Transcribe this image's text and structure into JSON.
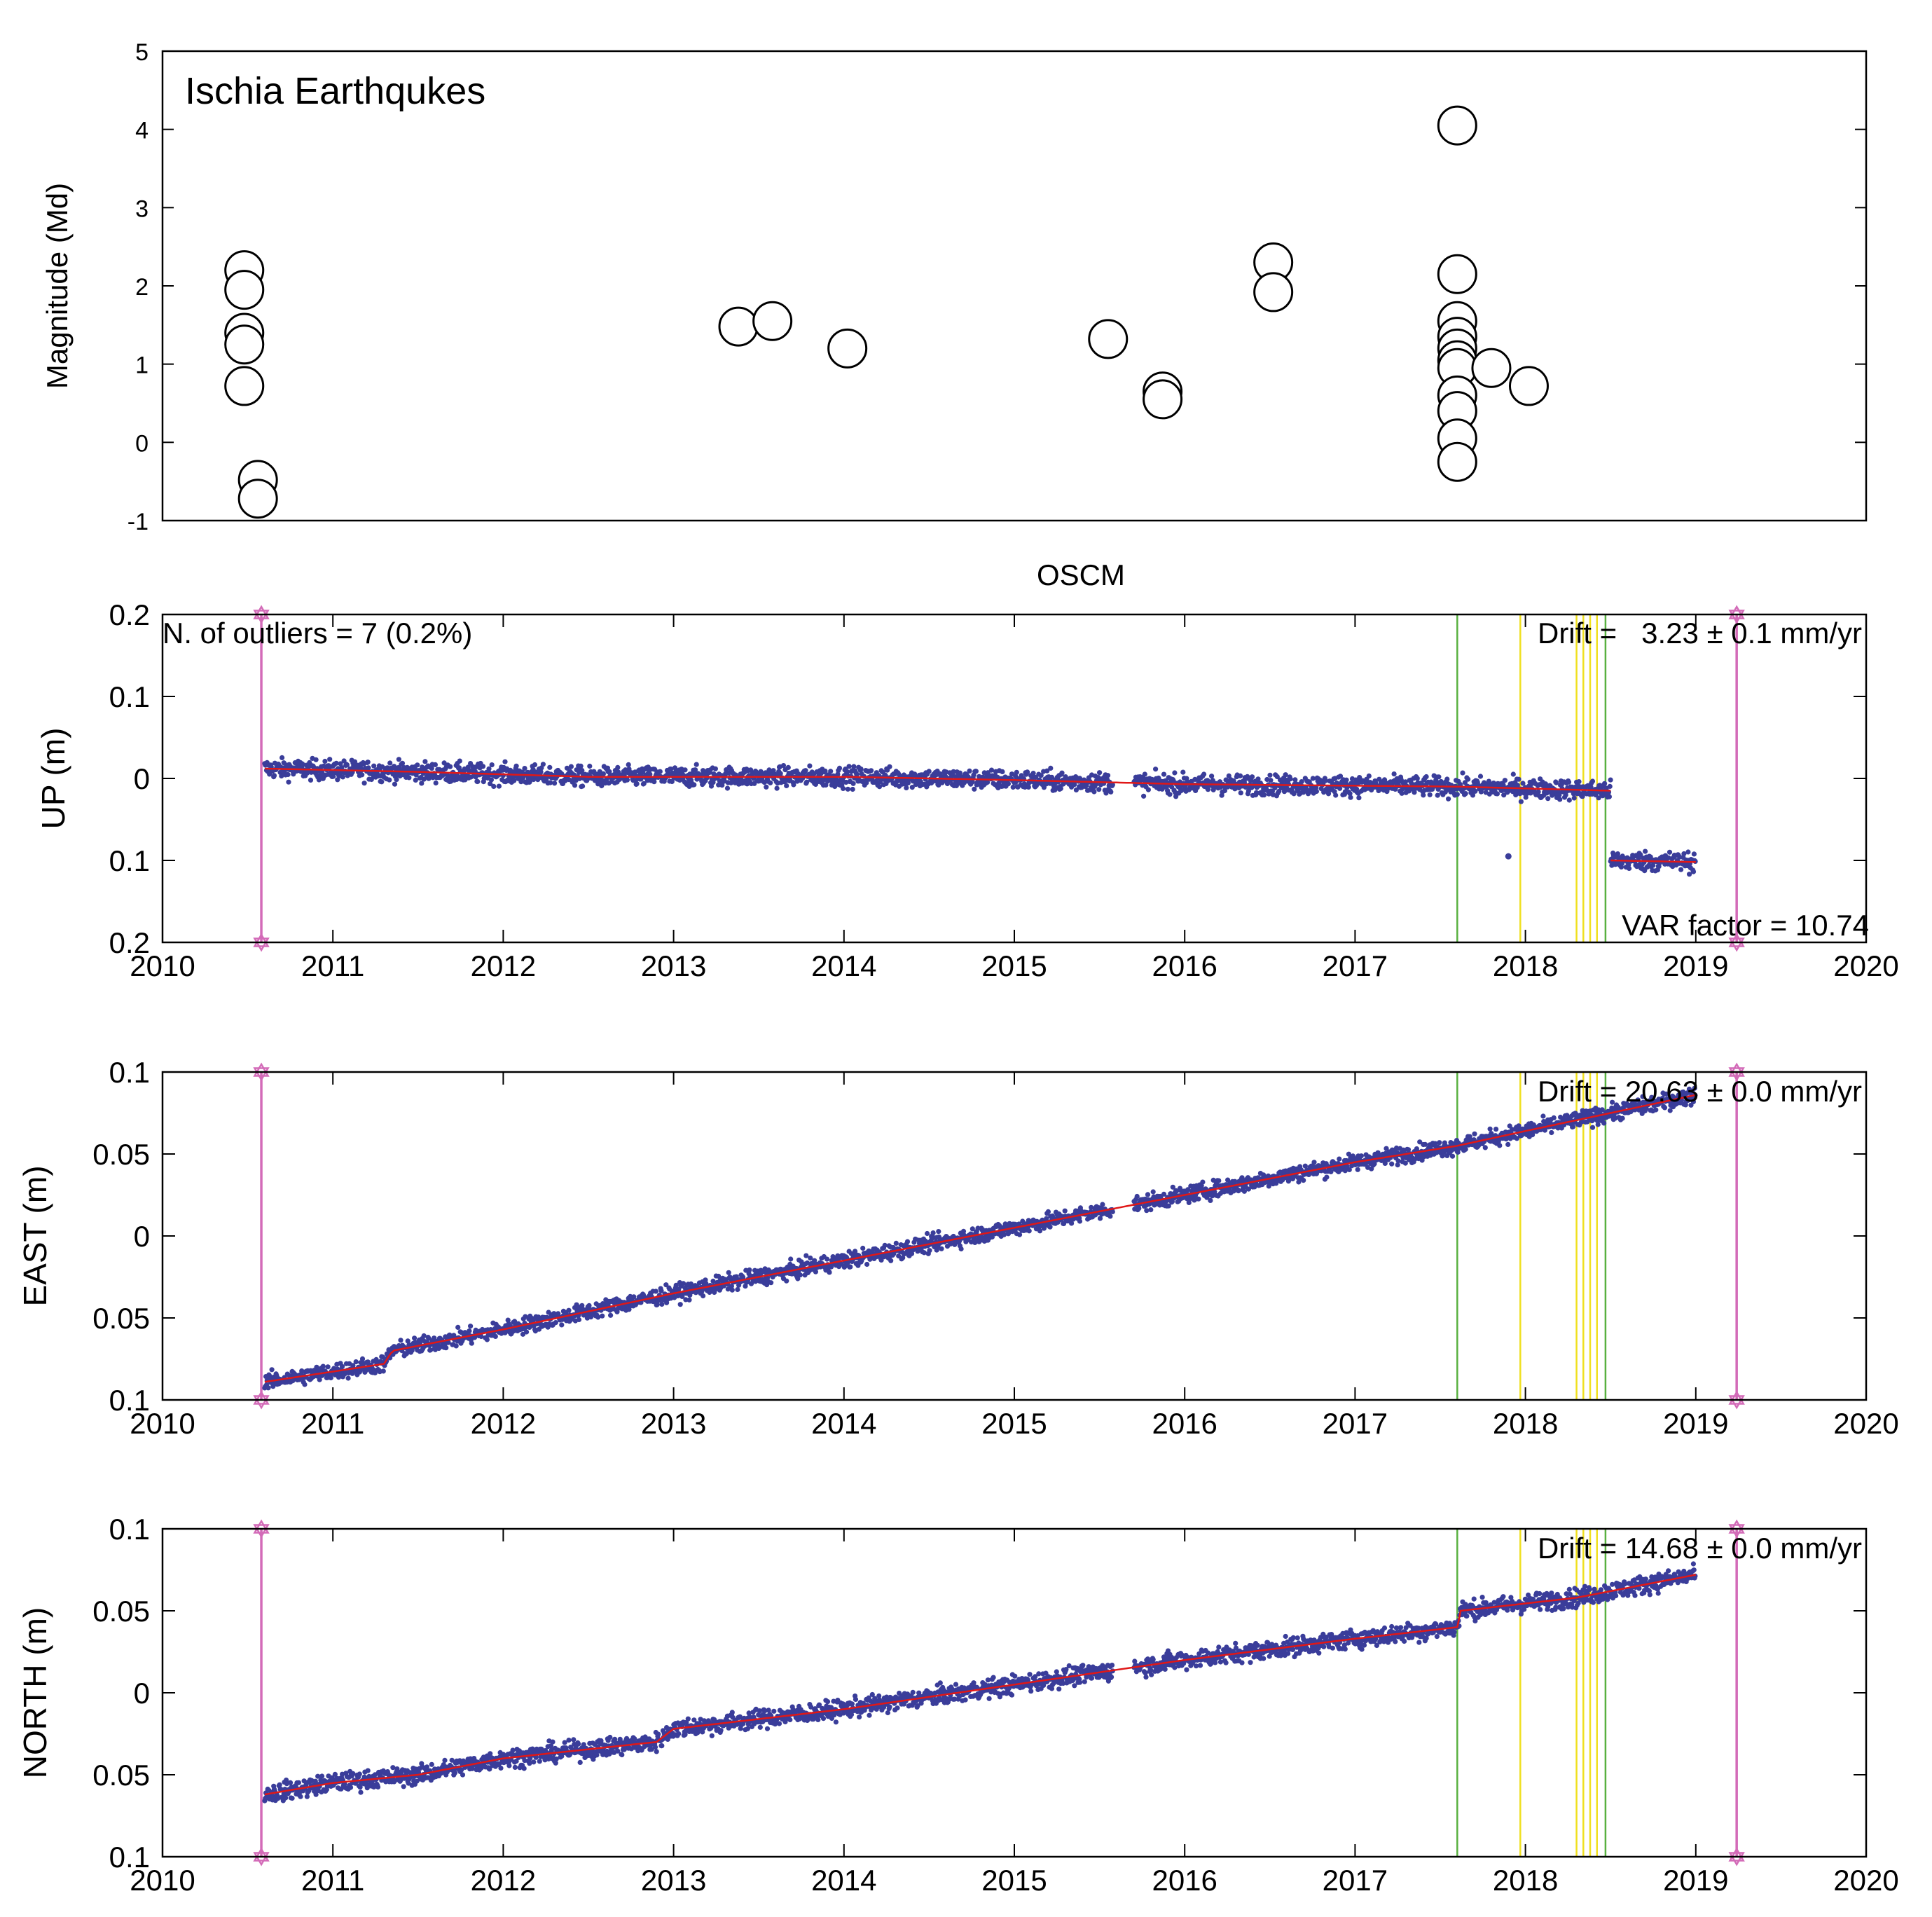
{
  "colors": {
    "series": "#3a3d9a",
    "fit": "#e01818",
    "event_marker": "#d36bb8",
    "green_line": "#58b040",
    "yellow_line": "#f0e020",
    "frame": "#000000",
    "circle": "#000000"
  },
  "chart_data": [
    {
      "type": "scatter",
      "id": "magnitude",
      "title": "Ischia Earthqukes",
      "xlabel": "",
      "ylabel": "Magnitude (Md)",
      "xlim": [
        2010,
        2020
      ],
      "ylim": [
        -1,
        5
      ],
      "yticks": [
        -1,
        0,
        1,
        2,
        3,
        4,
        5
      ],
      "ytick_labels": [
        "-1",
        "0",
        "1",
        "2",
        "3",
        "4",
        "5"
      ],
      "points": [
        {
          "x": 2010.48,
          "y": 2.2
        },
        {
          "x": 2010.48,
          "y": 1.95
        },
        {
          "x": 2010.48,
          "y": 1.4
        },
        {
          "x": 2010.48,
          "y": 1.25
        },
        {
          "x": 2010.48,
          "y": 0.72
        },
        {
          "x": 2010.56,
          "y": -0.48
        },
        {
          "x": 2010.56,
          "y": -0.72
        },
        {
          "x": 2013.38,
          "y": 1.48
        },
        {
          "x": 2013.58,
          "y": 1.55
        },
        {
          "x": 2014.02,
          "y": 1.2
        },
        {
          "x": 2015.55,
          "y": 1.32
        },
        {
          "x": 2015.87,
          "y": 0.65
        },
        {
          "x": 2015.87,
          "y": 0.55
        },
        {
          "x": 2016.52,
          "y": 2.3
        },
        {
          "x": 2016.52,
          "y": 1.92
        },
        {
          "x": 2017.6,
          "y": 4.05
        },
        {
          "x": 2017.6,
          "y": 2.15
        },
        {
          "x": 2017.6,
          "y": 1.55
        },
        {
          "x": 2017.6,
          "y": 1.35
        },
        {
          "x": 2017.6,
          "y": 1.2
        },
        {
          "x": 2017.6,
          "y": 1.05
        },
        {
          "x": 2017.6,
          "y": 0.95
        },
        {
          "x": 2017.6,
          "y": 0.6
        },
        {
          "x": 2017.6,
          "y": 0.4
        },
        {
          "x": 2017.6,
          "y": 0.05
        },
        {
          "x": 2017.6,
          "y": -0.25
        },
        {
          "x": 2017.8,
          "y": 0.95
        },
        {
          "x": 2018.02,
          "y": 0.72
        }
      ]
    },
    {
      "type": "scatter",
      "id": "up",
      "title": "OSCM",
      "ylabel": "UP (m)",
      "xlim": [
        2010,
        2020
      ],
      "ylim": [
        -0.2,
        0.2
      ],
      "xticks": [
        2010,
        2011,
        2012,
        2013,
        2014,
        2015,
        2016,
        2017,
        2018,
        2019,
        2020
      ],
      "xtick_labels": [
        "2010",
        "2011",
        "2012",
        "2013",
        "2014",
        "2015",
        "2016",
        "2017",
        "2018",
        "2019",
        "2020"
      ],
      "yticks": [
        0.2,
        0.1,
        0,
        -0.1,
        -0.2
      ],
      "ytick_labels": [
        "0.2",
        "0.1",
        "0",
        "0.1",
        "0.2"
      ],
      "annotations": {
        "outliers": "N. of outliers = 7 (0.2%)",
        "drift": "Drift =   3.23 ± 0.1 mm/yr",
        "var_factor": "VAR factor = 10.74"
      },
      "series": [
        {
          "name": "up-pre",
          "x_start": 2010.6,
          "x_end": 2018.5,
          "trend": [
            [
              2010.6,
              0.012
            ],
            [
              2011.5,
              0.008
            ],
            [
              2012.5,
              0.002
            ],
            [
              2014.0,
              0.002
            ],
            [
              2015.0,
              -0.002
            ],
            [
              2016.0,
              -0.007
            ],
            [
              2017.6,
              -0.01
            ],
            [
              2018.5,
              -0.015
            ]
          ],
          "noise": 0.006
        },
        {
          "name": "up-post",
          "x_start": 2018.5,
          "x_end": 2019.0,
          "trend": [
            [
              2018.5,
              -0.1
            ],
            [
              2019.0,
              -0.102
            ]
          ],
          "noise": 0.006
        }
      ],
      "outlier_points": [
        {
          "x": 2017.9,
          "y": -0.095
        }
      ],
      "event_lines": [
        2010.58,
        2019.24
      ],
      "green_lines": [
        2017.6,
        2018.47
      ],
      "yellow_lines": [
        2017.97,
        2018.3,
        2018.34,
        2018.38,
        2018.42
      ]
    },
    {
      "type": "scatter",
      "id": "east",
      "ylabel": "EAST (m)",
      "xlim": [
        2010,
        2020
      ],
      "ylim": [
        -0.1,
        0.1
      ],
      "xticks": [
        2010,
        2011,
        2012,
        2013,
        2014,
        2015,
        2016,
        2017,
        2018,
        2019,
        2020
      ],
      "xtick_labels": [
        "2010",
        "2011",
        "2012",
        "2013",
        "2014",
        "2015",
        "2016",
        "2017",
        "2018",
        "2019",
        "2020"
      ],
      "yticks": [
        0.1,
        0.05,
        0,
        -0.05,
        -0.1
      ],
      "ytick_labels": [
        "0.1",
        "0.05",
        "0",
        "0.05",
        "0.1"
      ],
      "annotations": {
        "drift": "Drift = 20.63 ± 0.0 mm/yr"
      },
      "series": [
        {
          "name": "east",
          "x_start": 2010.6,
          "x_end": 2019.0,
          "trend": [
            [
              2010.6,
              -0.089
            ],
            [
              2011.3,
              -0.078
            ],
            [
              2011.35,
              -0.07
            ],
            [
              2012.0,
              -0.057
            ],
            [
              2013.0,
              -0.035
            ],
            [
              2014.0,
              -0.015
            ],
            [
              2015.0,
              0.005
            ],
            [
              2016.0,
              0.025
            ],
            [
              2017.0,
              0.045
            ],
            [
              2017.6,
              0.055
            ],
            [
              2018.0,
              0.064
            ],
            [
              2019.0,
              0.086
            ]
          ],
          "noise": 0.0025
        }
      ],
      "event_lines": [
        2010.58,
        2019.24
      ],
      "green_lines": [
        2017.6,
        2018.47
      ],
      "yellow_lines": [
        2017.97,
        2018.3,
        2018.34,
        2018.38,
        2018.42
      ]
    },
    {
      "type": "scatter",
      "id": "north",
      "ylabel": "NORTH (m)",
      "xlim": [
        2010,
        2020
      ],
      "ylim": [
        -0.1,
        0.1
      ],
      "xticks": [
        2010,
        2011,
        2012,
        2013,
        2014,
        2015,
        2016,
        2017,
        2018,
        2019,
        2020
      ],
      "xtick_labels": [
        "2010",
        "2011",
        "2012",
        "2013",
        "2014",
        "2015",
        "2016",
        "2017",
        "2018",
        "2019",
        "2020"
      ],
      "yticks": [
        0.1,
        0.05,
        0,
        -0.05,
        -0.1
      ],
      "ytick_labels": [
        "0.1",
        "0.05",
        "0",
        "0.05",
        "0.1"
      ],
      "annotations": {
        "drift": "Drift = 14.68 ± 0.0 mm/yr"
      },
      "series": [
        {
          "name": "north",
          "x_start": 2010.6,
          "x_end": 2019.0,
          "trend": [
            [
              2010.6,
              -0.062
            ],
            [
              2011.0,
              -0.055
            ],
            [
              2011.5,
              -0.05
            ],
            [
              2012.0,
              -0.04
            ],
            [
              2012.9,
              -0.03
            ],
            [
              2013.0,
              -0.022
            ],
            [
              2014.0,
              -0.01
            ],
            [
              2015.0,
              0.005
            ],
            [
              2016.0,
              0.02
            ],
            [
              2017.0,
              0.033
            ],
            [
              2017.6,
              0.04
            ],
            [
              2017.62,
              0.05
            ],
            [
              2018.3,
              0.058
            ],
            [
              2019.0,
              0.072
            ]
          ],
          "noise": 0.0028
        }
      ],
      "event_lines": [
        2010.58,
        2019.24
      ],
      "green_lines": [
        2017.6,
        2018.47
      ],
      "yellow_lines": [
        2017.97,
        2018.3,
        2018.34,
        2018.38,
        2018.42
      ]
    }
  ]
}
